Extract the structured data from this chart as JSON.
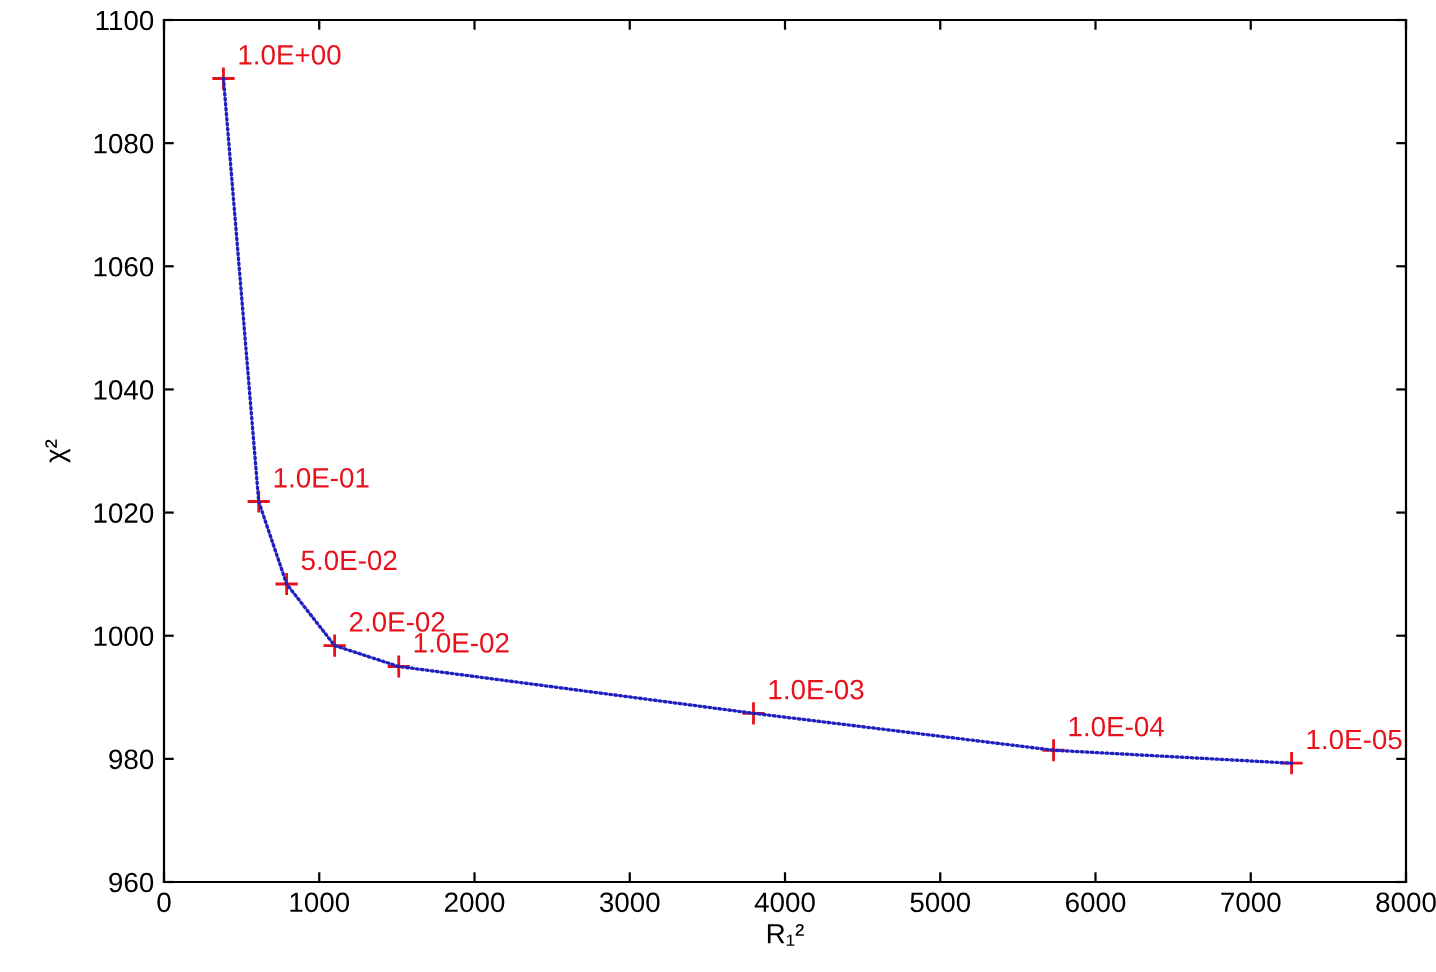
{
  "chart_data": {
    "type": "line",
    "xlabel": "R₁²",
    "ylabel": "χ²",
    "x": [
      383,
      610,
      790,
      1099,
      1512,
      3797,
      5730,
      7263
    ],
    "series": [
      {
        "color": "#2020c0",
        "line_style": "dotted",
        "marker": "none",
        "values": [
          1090.5,
          1021.8,
          1008.4,
          998.4,
          995.0,
          987.4,
          981.4,
          979.3
        ]
      },
      {
        "type": "scatter",
        "color": "#e8101a",
        "marker": "cross",
        "values": [
          1090.5,
          1021.8,
          1008.4,
          998.4,
          995.0,
          987.4,
          981.4,
          979.3
        ]
      }
    ],
    "annotations": [
      {
        "text": "1.0E+00",
        "x": 383,
        "y": 1090.5
      },
      {
        "text": "1.0E-01",
        "x": 610,
        "y": 1021.8
      },
      {
        "text": "5.0E-02",
        "x": 790,
        "y": 1008.4
      },
      {
        "text": "2.0E-02",
        "x": 1099,
        "y": 998.4
      },
      {
        "text": "1.0E-02",
        "x": 1512,
        "y": 995.0
      },
      {
        "text": "1.0E-03",
        "x": 3797,
        "y": 987.4
      },
      {
        "text": "1.0E-04",
        "x": 5730,
        "y": 981.4
      },
      {
        "text": "1.0E-05",
        "x": 7263,
        "y": 979.3
      }
    ],
    "xlim": [
      0,
      8000
    ],
    "xticks": [
      0,
      1000,
      2000,
      3000,
      4000,
      5000,
      6000,
      7000,
      8000
    ],
    "ylim": [
      960,
      1100
    ],
    "yticks": [
      960,
      980,
      1000,
      1020,
      1040,
      1060,
      1080,
      1100
    ],
    "grid": false,
    "legend": false
  }
}
